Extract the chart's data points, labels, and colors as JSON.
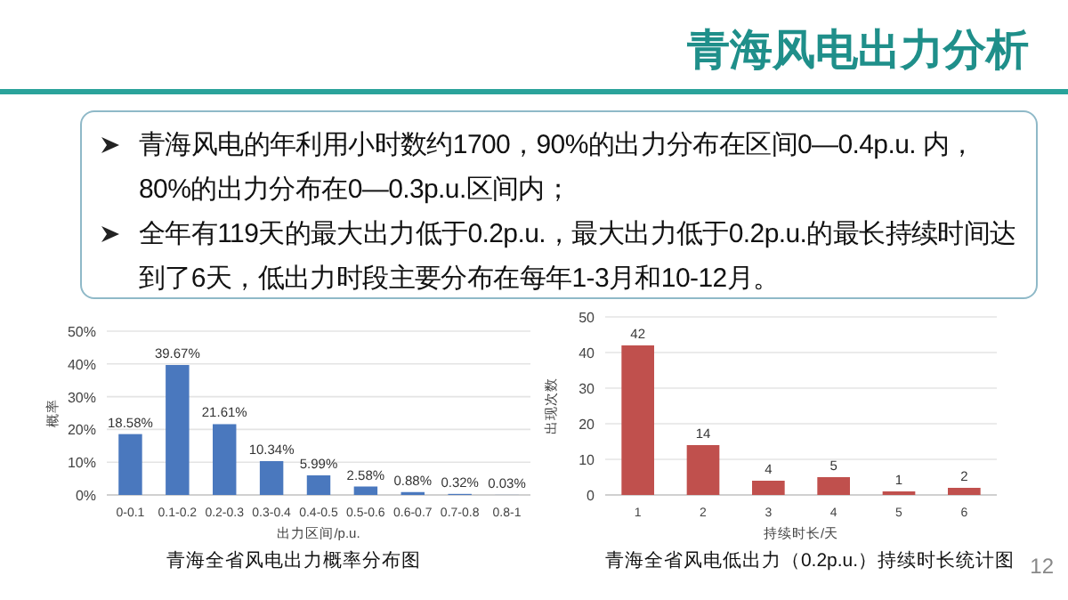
{
  "chart_data": [
    {
      "type": "other",
      "title": "青海风电出力分析",
      "annotations": [
        "青海风电的年利用小时数约1700，90%的出力分布在区间0—0.4p.u. 内， 80%的出力分布在0—0.3p.u.区间内；",
        "全年有119天的最大出力低于0.2p.u.，最大出力低于0.2p.u.的最长持续时间达到了6天，低出力时段主要分布在每年1-3月和10-12月。",
        "12"
      ]
    },
    {
      "type": "bar",
      "title": "青海全省风电出力概率分布图",
      "xlabel": "出力区间/p.u.",
      "ylabel": "概率",
      "categories": [
        "0-0.1",
        "0.1-0.2",
        "0.2-0.3",
        "0.3-0.4",
        "0.4-0.5",
        "0.5-0.6",
        "0.6-0.7",
        "0.7-0.8",
        "0.8-1"
      ],
      "series": [
        {
          "color": "#4a78be",
          "values": [
            18.58,
            39.67,
            21.61,
            10.34,
            5.99,
            2.58,
            0.88,
            0.32,
            0.03
          ],
          "value_labels": [
            "18.58%",
            "39.67%",
            "21.61%",
            "10.34%",
            "5.99%",
            "2.58%",
            "0.88%",
            "0.32%",
            "0.03%"
          ]
        }
      ],
      "ylim": [
        0,
        50
      ],
      "yticks": [
        {
          "value": 0,
          "label": "0%"
        },
        {
          "value": 10,
          "label": "10%"
        },
        {
          "value": 20,
          "label": "20%"
        },
        {
          "value": 30,
          "label": "30%"
        },
        {
          "value": 40,
          "label": "40%"
        },
        {
          "value": 50,
          "label": "50%"
        }
      ],
      "grid": "y"
    },
    {
      "type": "bar",
      "title": "青海全省风电低出力（0.2p.u.）持续时长统计图",
      "xlabel": "持续时长/天",
      "ylabel": "出现次数",
      "categories": [
        "1",
        "2",
        "3",
        "4",
        "5",
        "6"
      ],
      "series": [
        {
          "color": "#c0504d",
          "values": [
            42,
            14,
            4,
            5,
            1,
            2
          ]
        }
      ],
      "ylim": [
        0,
        50
      ],
      "yticks": [
        0,
        10,
        20,
        30,
        40,
        50
      ],
      "grid": "y",
      "data_labels": true
    }
  ]
}
